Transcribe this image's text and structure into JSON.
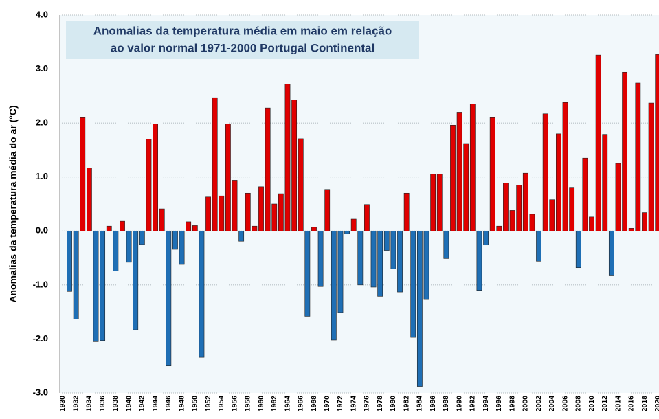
{
  "chart_data": {
    "type": "bar",
    "title": [
      "Anomalias da temperatura média em maio em relação",
      "ao valor normal 1971-2000 Portugal Continental"
    ],
    "y_label": "Anomalias da temperatura média do ar (°C)",
    "categories": [
      "1930",
      null,
      "1932",
      null,
      "1934",
      null,
      "1936",
      null,
      "1938",
      null,
      "1940",
      null,
      "1942",
      null,
      "1944",
      null,
      "1946",
      null,
      "1948",
      null,
      "1950",
      null,
      "1952",
      null,
      "1954",
      null,
      "1956",
      null,
      "1958",
      null,
      "1960",
      null,
      "1962",
      null,
      "1964",
      null,
      "1966",
      null,
      "1968",
      null,
      "1970",
      null,
      "1972",
      null,
      "1974",
      null,
      "1976",
      null,
      "1978",
      null,
      "1980",
      null,
      "1982",
      null,
      "1984",
      null,
      "1986",
      null,
      "1988",
      null,
      "1990",
      null,
      "1992",
      null,
      "1994",
      null,
      "1996",
      null,
      "1998",
      null,
      "2000",
      null,
      "2002",
      null,
      "2004",
      null,
      "2006",
      null,
      "2008",
      null,
      "2010",
      null,
      "2012",
      null,
      "2014",
      null,
      "2016",
      null,
      "2018",
      null,
      "2020"
    ],
    "values": [
      null,
      -1.12,
      -1.63,
      2.1,
      1.17,
      -2.05,
      -2.03,
      0.09,
      -0.74,
      0.18,
      -0.58,
      -1.83,
      -0.25,
      1.7,
      1.98,
      0.41,
      -2.5,
      -0.34,
      -0.62,
      0.17,
      0.1,
      -2.34,
      0.63,
      2.47,
      0.65,
      1.98,
      0.94,
      -0.19,
      0.7,
      0.09,
      0.82,
      2.28,
      0.5,
      0.69,
      2.72,
      2.43,
      1.71,
      -1.58,
      0.07,
      -1.03,
      0.77,
      -2.02,
      -1.51,
      -0.05,
      0.22,
      -1.0,
      0.49,
      -1.04,
      -1.21,
      -0.36,
      -0.7,
      -1.13,
      0.7,
      -1.97,
      -2.88,
      -1.27,
      1.05,
      1.05,
      -0.51,
      1.96,
      2.2,
      1.62,
      2.35,
      -1.1,
      -0.26,
      2.1,
      0.09,
      0.89,
      0.38,
      0.85,
      1.07,
      0.31,
      -0.56,
      2.17,
      0.58,
      1.8,
      2.38,
      0.81,
      -0.68,
      1.35,
      0.26,
      3.26,
      1.79,
      -0.83,
      1.25,
      2.94,
      0.05,
      2.74,
      0.34,
      2.37,
      3.27
    ],
    "positive_color": "#e00000",
    "negative_color": "#1f6fb5",
    "ylim": [
      -3,
      4
    ],
    "yticks": [
      {
        "value": -3,
        "label": "-3.0"
      },
      {
        "value": -2,
        "label": "-2.0"
      },
      {
        "value": -1,
        "label": "-1.0"
      },
      {
        "value": 0,
        "label": "0.0"
      },
      {
        "value": 1,
        "label": "1.0"
      },
      {
        "value": 2,
        "label": "2.0"
      },
      {
        "value": 3,
        "label": "3.0"
      },
      {
        "value": 4,
        "label": "4.0"
      }
    ],
    "grid": true
  }
}
